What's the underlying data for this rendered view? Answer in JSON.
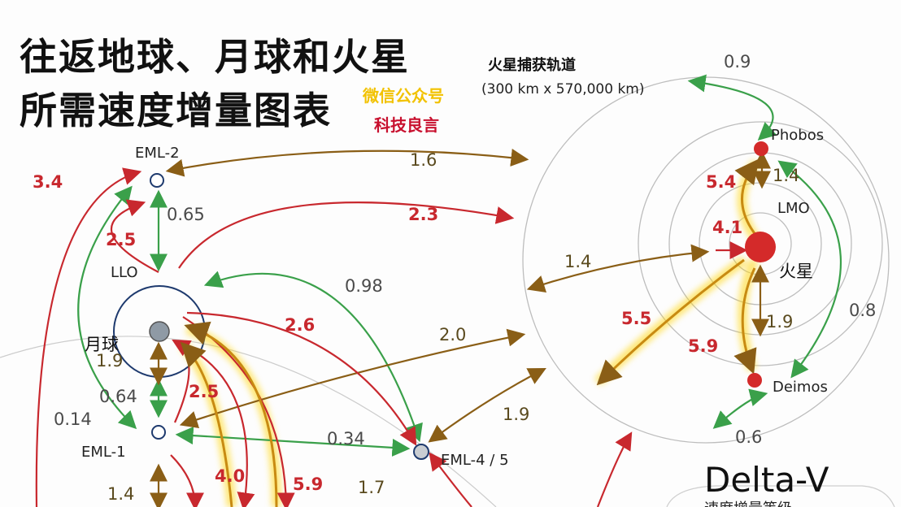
{
  "title": {
    "line1": "往返地球、月球和火星",
    "line2": "所需速度增量图表"
  },
  "watermark": {
    "line1": "微信公众号",
    "line2": "科技良言"
  },
  "mars_capture_orbit": {
    "label": "火星捕获轨道",
    "dims": "(300 km x 570,000 km)"
  },
  "nodes": {
    "eml2": "EML-2",
    "llo": "LLO",
    "moon": "月球",
    "eml1": "EML-1",
    "eml45": "EML-4 / 5",
    "phobos": "Phobos",
    "lmo": "LMO",
    "mars": "火星",
    "deimos": "Deimos"
  },
  "delta_v_labels": {
    "eml2_to_llo": "0.65",
    "llo_to_eml45": "0.98",
    "eml2_to_mars_capture": "1.6",
    "llo_to_lmo": "2.3",
    "earth_to_eml2": "3.4",
    "llo_to_eml2": "2.5",
    "moon_surface": "1.9",
    "llo_eml1": "0.64",
    "eml1_aux": "0.14",
    "moon_to_eml45": "2.6",
    "moon_to_eml1": "2.5",
    "eml1_to_mars": "2.0",
    "eml1_to_eml45": "0.34",
    "eml45_to_mars": "1.9",
    "capture_to_mars_sys": "1.4",
    "earth_to_eml1": "1.4",
    "earth_to_moon": "4.0",
    "earth_to_moon2": "5.9",
    "earth_to_eml45": "1.7",
    "phobos_top": "0.9",
    "lmo_phobos": "5.4",
    "phobos_lmo": "1.4",
    "mars_lmo": "4.1",
    "mars_surface_to_earth": "5.5",
    "deimos_up": "5.9",
    "deimos_lmo": "1.9",
    "deimos_phobos": "0.8",
    "deimos_bottom": "0.6"
  },
  "legend": {
    "title": "Delta-V",
    "subtitle": "速度增量等级"
  },
  "colors": {
    "green": "#3aa04a",
    "gold": "#9a6e1c",
    "red": "#c8282e",
    "yellow_glow": "#ffd400",
    "node_red": "#d42a2a",
    "node_grey": "#8f9aa5"
  }
}
